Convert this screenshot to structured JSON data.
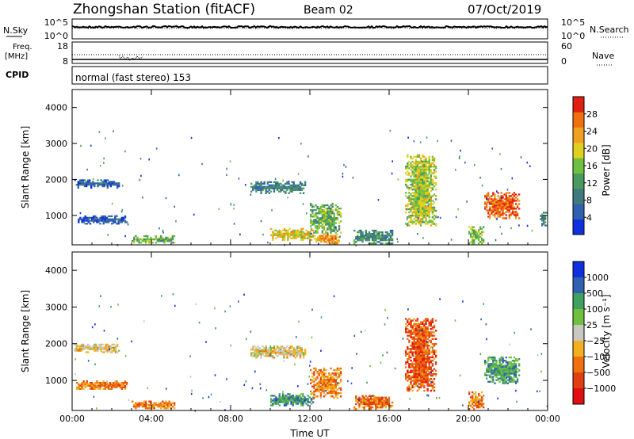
{
  "header": {
    "title": "Zhongshan Station (fitACF)",
    "beam": "Beam 02",
    "date": "07/Oct/2019"
  },
  "noise_panel": {
    "left_label": "N.Sky",
    "right_label": "N.Search",
    "ticks": [
      "10^5",
      "10^0"
    ],
    "right_ticks": [
      "10^5",
      "10^0"
    ]
  },
  "freq_panel": {
    "left_label_top": "Freq.",
    "left_label_unit": "[MHz]",
    "left_ticks": [
      "18",
      "8"
    ],
    "right_label": "Nave",
    "right_ticks": [
      "60",
      "0"
    ]
  },
  "cpid_panel": {
    "label": "CPID",
    "text": "normal (fast stereo) 153"
  },
  "chart_data": [
    {
      "type": "heatmap",
      "panel": "power",
      "ylabel": "Slant Range [km]",
      "xlabel": "",
      "x_ticks": [
        "00:00",
        "04:00",
        "08:00",
        "12:00",
        "16:00",
        "20:00",
        "00:00"
      ],
      "xlim_hours": [
        0,
        24
      ],
      "y_ticks": [
        1000,
        2000,
        3000,
        4000
      ],
      "ylim": [
        180,
        4500
      ],
      "colorbar": {
        "label": "Power [dB]",
        "tick_labels": [
          "4",
          "8",
          "12",
          "16",
          "20",
          "24",
          "28"
        ],
        "range": [
          0,
          30
        ]
      },
      "regions": [
        {
          "t0": 0.1,
          "t1": 2.4,
          "r0": 1750,
          "r1": 2000,
          "level": 0.2
        },
        {
          "t0": 0.2,
          "t1": 2.8,
          "r0": 750,
          "r1": 1000,
          "level": 0.15
        },
        {
          "t0": 3.0,
          "t1": 5.2,
          "r0": 220,
          "r1": 450,
          "level": 0.45
        },
        {
          "t0": 9.0,
          "t1": 11.8,
          "r0": 1600,
          "r1": 1950,
          "level": 0.3
        },
        {
          "t0": 10.0,
          "t1": 12.2,
          "r0": 300,
          "r1": 650,
          "level": 0.65
        },
        {
          "t0": 12.0,
          "t1": 13.6,
          "r0": 500,
          "r1": 1350,
          "level": 0.45
        },
        {
          "t0": 12.2,
          "t1": 13.5,
          "r0": 200,
          "r1": 500,
          "level": 0.75
        },
        {
          "t0": 14.2,
          "t1": 16.2,
          "r0": 200,
          "r1": 600,
          "level": 0.35
        },
        {
          "t0": 16.8,
          "t1": 18.4,
          "r0": 700,
          "r1": 2700,
          "level": 0.55
        },
        {
          "t0": 20.0,
          "t1": 20.8,
          "r0": 200,
          "r1": 700,
          "level": 0.5
        },
        {
          "t0": 20.8,
          "t1": 22.6,
          "r0": 900,
          "r1": 1650,
          "level": 0.85
        },
        {
          "t0": 23.6,
          "t1": 24.0,
          "r0": 700,
          "r1": 1100,
          "level": 0.3
        }
      ]
    },
    {
      "type": "heatmap",
      "panel": "velocity",
      "ylabel": "Slant Range [km]",
      "xlabel": "Time UT",
      "x_ticks": [
        "00:00",
        "04:00",
        "08:00",
        "12:00",
        "16:00",
        "20:00",
        "00:00"
      ],
      "xlim_hours": [
        0,
        24
      ],
      "y_ticks": [
        1000,
        2000,
        3000,
        4000
      ],
      "ylim": [
        180,
        4500
      ],
      "colorbar": {
        "label": "Velocity [m s⁻¹]",
        "tick_labels": [
          "1000",
          "500",
          "100",
          "25",
          "−25",
          "−100",
          "−500",
          "−1000"
        ]
      },
      "regions": [
        {
          "t0": 0.1,
          "t1": 2.4,
          "r0": 1750,
          "r1": 2000,
          "level": 0.55
        },
        {
          "t0": 0.2,
          "t1": 2.8,
          "r0": 750,
          "r1": 1000,
          "level": 0.7
        },
        {
          "t0": 3.0,
          "t1": 5.2,
          "r0": 220,
          "r1": 450,
          "level": 0.72
        },
        {
          "t0": 9.0,
          "t1": 11.8,
          "r0": 1600,
          "r1": 1950,
          "level": 0.55
        },
        {
          "t0": 10.0,
          "t1": 12.2,
          "r0": 300,
          "r1": 650,
          "level": 0.25
        },
        {
          "t0": 12.0,
          "t1": 13.6,
          "r0": 500,
          "r1": 1350,
          "level": 0.7
        },
        {
          "t0": 14.2,
          "t1": 16.2,
          "r0": 200,
          "r1": 600,
          "level": 0.75
        },
        {
          "t0": 16.8,
          "t1": 18.4,
          "r0": 700,
          "r1": 2700,
          "level": 0.78
        },
        {
          "t0": 20.0,
          "t1": 20.8,
          "r0": 200,
          "r1": 700,
          "level": 0.7
        },
        {
          "t0": 20.8,
          "t1": 22.6,
          "r0": 900,
          "r1": 1650,
          "level": 0.3
        }
      ]
    }
  ],
  "colors": {
    "power_scale": [
      "#1030e0",
      "#3060b0",
      "#407a80",
      "#4a9a60",
      "#70c040",
      "#e0d020",
      "#f0a020",
      "#f07010",
      "#e02010"
    ],
    "velocity_scale": [
      "#1030e0",
      "#3060b0",
      "#40a060",
      "#70c040",
      "#c8c8c0",
      "#f0b020",
      "#f07010",
      "#e04010",
      "#e01010"
    ]
  }
}
